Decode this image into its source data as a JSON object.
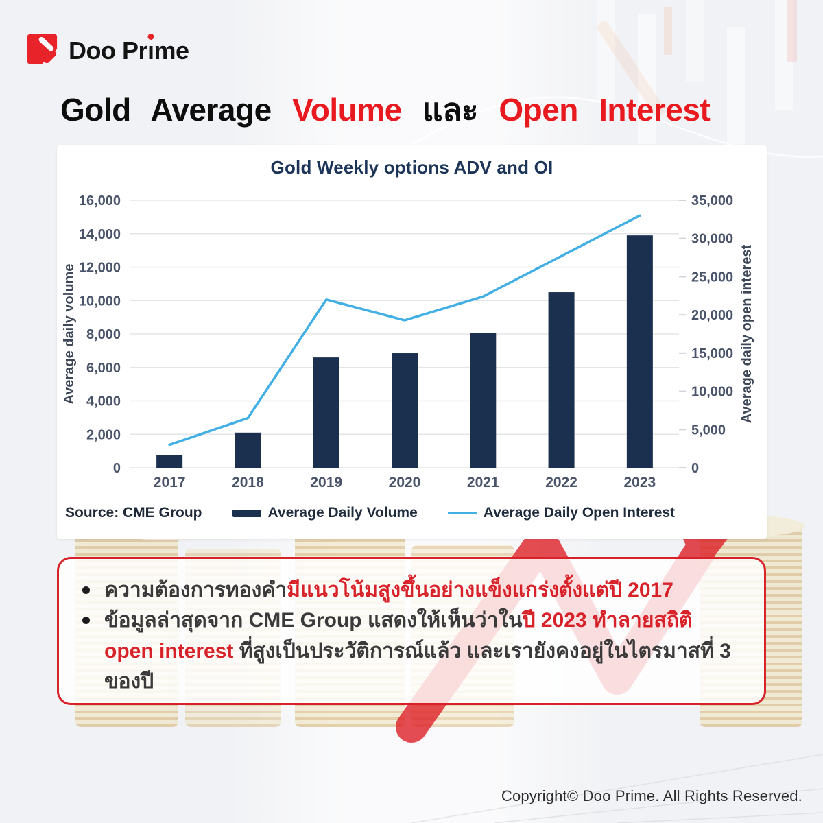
{
  "brand": {
    "name": "Doo Prime"
  },
  "title": {
    "seg1": "Gold Average ",
    "seg2": "Volume",
    "seg3": " และ ",
    "seg4": "Open Interest"
  },
  "chart_data": {
    "type": "bar",
    "title": "Gold Weekly options ADV and OI",
    "categories": [
      "2017",
      "2018",
      "2019",
      "2020",
      "2021",
      "2022",
      "2023"
    ],
    "series": [
      {
        "name": "Average Daily Volume",
        "type": "bar",
        "axis": "left",
        "color": "#1b2f4e",
        "values": [
          750,
          2100,
          6600,
          6850,
          8050,
          10500,
          13900
        ]
      },
      {
        "name": "Average Daily Open Interest",
        "type": "line",
        "axis": "right",
        "color": "#41aee4",
        "values": [
          3000,
          6500,
          22000,
          19300,
          22400,
          27700,
          33000
        ]
      }
    ],
    "left_axis": {
      "label": "Average daily volume",
      "min": 0,
      "max": 16000,
      "step": 2000
    },
    "right_axis": {
      "label": "Average daily open interest",
      "min": 0,
      "max": 35000,
      "step": 5000
    },
    "grid": true,
    "legend_position": "bottom"
  },
  "source": "Source: CME Group",
  "notes": {
    "b1_black": "ความต้องการทองคำ",
    "b1_red": "มีแนวโน้มสูงขึ้นอย่างแข็งแกร่งตั้งแต่ปี 2017",
    "b2_black1": "ข้อมูลล่าสุดจาก CME Group แสดงให้เห็นว่าใน",
    "b2_red": "ปี 2023 ทำลายสถิติ open interest",
    "b2_black2": " ที่สูงเป็นประวัติการณ์แล้ว และเรายังคงอยู่ในไตรมาสที่ 3 ของปี"
  },
  "footer": {
    "copyright": "Copyright© Doo Prime. All Rights Reserved."
  },
  "colors": {
    "accent_red": "#e8191f",
    "box_red": "#d8222a",
    "navy_bar": "#1b2f4e",
    "light_blue_line": "#41aee4",
    "chart_title_navy": "#1b3457"
  }
}
